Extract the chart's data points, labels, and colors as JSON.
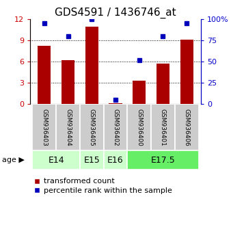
{
  "title": "GDS4591 / 1436746_at",
  "samples": [
    "GSM936403",
    "GSM936404",
    "GSM936405",
    "GSM936402",
    "GSM936400",
    "GSM936401",
    "GSM936406"
  ],
  "red_values": [
    8.2,
    6.2,
    11.0,
    0.1,
    3.3,
    5.7,
    9.1
  ],
  "blue_values": [
    95,
    80,
    100,
    5,
    52,
    80,
    95
  ],
  "ylim_left": [
    0,
    12
  ],
  "ylim_right": [
    0,
    100
  ],
  "yticks_left": [
    0,
    3,
    6,
    9,
    12
  ],
  "yticks_right": [
    0,
    25,
    50,
    75,
    100
  ],
  "age_groups": [
    {
      "label": "E14",
      "start": 0,
      "end": 2,
      "color": "#ccffcc"
    },
    {
      "label": "E15",
      "start": 2,
      "end": 3,
      "color": "#ccffcc"
    },
    {
      "label": "E16",
      "start": 3,
      "end": 4,
      "color": "#ccffcc"
    },
    {
      "label": "E17.5",
      "start": 4,
      "end": 7,
      "color": "#66ee66"
    }
  ],
  "bar_color": "#aa0000",
  "dot_color": "#0000bb",
  "bar_width": 0.55,
  "background_color": "#ffffff",
  "sample_box_color": "#cccccc",
  "legend_red_label": "transformed count",
  "legend_blue_label": "percentile rank within the sample",
  "age_label": "age",
  "right_yaxis_color": "#0000cc",
  "left_yaxis_color": "#cc0000",
  "title_fontsize": 11,
  "tick_fontsize": 8,
  "legend_fontsize": 8,
  "sample_fontsize": 6.5,
  "age_fontsize": 9
}
